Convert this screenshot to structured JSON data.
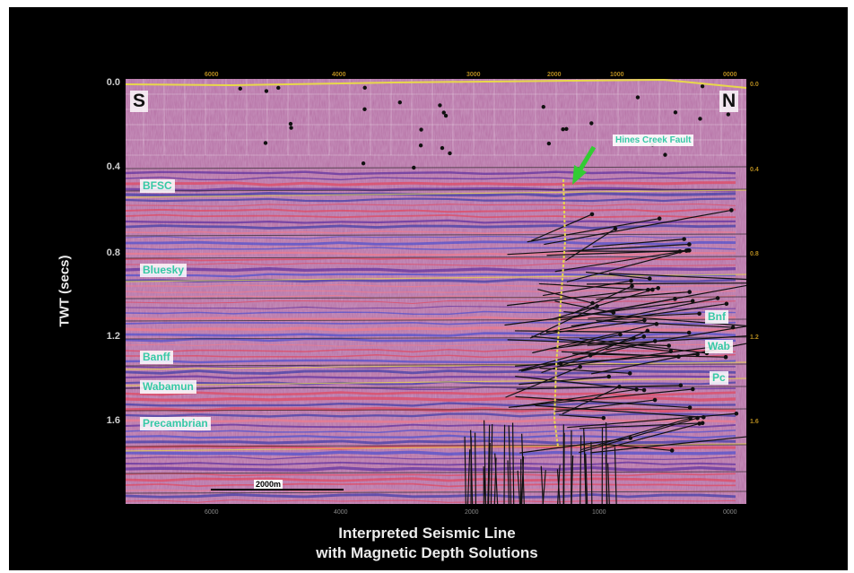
{
  "figure": {
    "title_line1": "Interpreted Seismic Line",
    "title_line2": "with Magnetic Depth Solutions",
    "y_axis_label": "TWT (secs)",
    "y_ticks": [
      "0.0",
      "0.4",
      "0.8",
      "1.2",
      "1.6"
    ],
    "top_ticks": [
      "6000",
      "4000",
      "3000",
      "2000",
      "1000",
      "0000"
    ],
    "right_ticks": [
      "0.0",
      "0.4",
      "0.8",
      "1.2",
      "1.6"
    ],
    "bottom_ticks": [
      "6000",
      "4000",
      "2000",
      "1000",
      "0000"
    ],
    "direction_left": "S",
    "direction_right": "N",
    "fault_label": "Hines Creek Fault",
    "scale_label": "2000m",
    "horizons_left": [
      "BFSC",
      "Bluesky",
      "Banff",
      "Wabamun",
      "Precambrian"
    ],
    "horizons_right": [
      "Bnf",
      "Wab",
      "Pc"
    ]
  },
  "colors": {
    "background": "#000000",
    "section": "#b46fa3",
    "horizon_label": "#36c9a6",
    "fault_arrow": "#33cc33",
    "fault_trace": "#e8d84a"
  }
}
